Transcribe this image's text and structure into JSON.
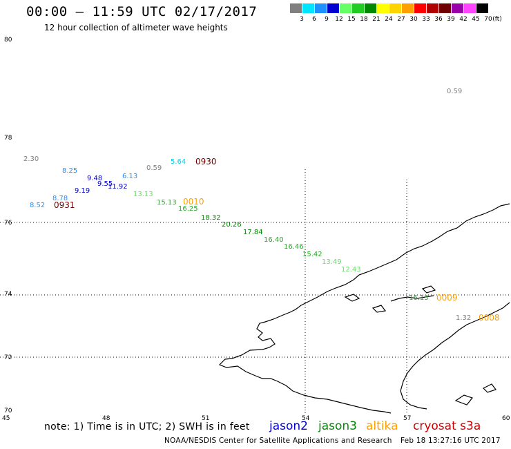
{
  "header": {
    "title": "00:00 – 11:59 UTC 02/17/2017",
    "subtitle": "12 hour collection of altimeter wave heights"
  },
  "color_scale": {
    "unit": "(ft)",
    "bins": [
      {
        "label": "3",
        "color": "#808080"
      },
      {
        "label": "6",
        "color": "#00e5ff"
      },
      {
        "label": "9",
        "color": "#1e90ff"
      },
      {
        "label": "12",
        "color": "#0000d0"
      },
      {
        "label": "15",
        "color": "#66ff66"
      },
      {
        "label": "18",
        "color": "#22cc22"
      },
      {
        "label": "21",
        "color": "#008800"
      },
      {
        "label": "24",
        "color": "#ffff00"
      },
      {
        "label": "27",
        "color": "#ffd400"
      },
      {
        "label": "30",
        "color": "#ffa000"
      },
      {
        "label": "33",
        "color": "#ff0000"
      },
      {
        "label": "36",
        "color": "#b00000"
      },
      {
        "label": "39",
        "color": "#700000"
      },
      {
        "label": "42",
        "color": "#9900aa"
      },
      {
        "label": "45",
        "color": "#ff44ff"
      },
      {
        "label": "70",
        "color": "#000000"
      }
    ]
  },
  "map": {
    "lat_labels": [
      "80",
      "78",
      "76",
      "74",
      "72",
      "70"
    ],
    "lon_labels": [
      "45",
      "48",
      "51",
      "54",
      "57",
      "60"
    ]
  },
  "observations": [
    {
      "value": "0.59",
      "color": "#808080"
    },
    {
      "value": "2.30",
      "color": "#808080"
    },
    {
      "value": "8.25",
      "color": "#1e90ff"
    },
    {
      "value": "5.64",
      "color": "#00cfe8"
    },
    {
      "value": "0930",
      "color": "#700000"
    },
    {
      "value": "0.59",
      "color": "#808080"
    },
    {
      "value": "9.48",
      "color": "#0000d0"
    },
    {
      "value": "6.13",
      "color": "#1e90ff"
    },
    {
      "value": "9.55",
      "color": "#0000d0"
    },
    {
      "value": "11.92",
      "color": "#0000d0"
    },
    {
      "value": "9.19",
      "color": "#0000d0"
    },
    {
      "value": "13.13",
      "color": "#66dd66"
    },
    {
      "value": "8.78",
      "color": "#1e90ff"
    },
    {
      "value": "15.13",
      "color": "#22aa22"
    },
    {
      "value": "0010",
      "color": "#ffa000"
    },
    {
      "value": "8.52",
      "color": "#1e90ff"
    },
    {
      "value": "0931",
      "color": "#700000"
    },
    {
      "value": "16.25",
      "color": "#22aa22"
    },
    {
      "value": "18.32",
      "color": "#008800"
    },
    {
      "value": "20.26",
      "color": "#008800"
    },
    {
      "value": "17.84",
      "color": "#008800"
    },
    {
      "value": "16.40",
      "color": "#22aa22"
    },
    {
      "value": "16.46",
      "color": "#22aa22"
    },
    {
      "value": "15.42",
      "color": "#22aa22"
    },
    {
      "value": "13.49",
      "color": "#66dd66"
    },
    {
      "value": "12.43",
      "color": "#66dd66"
    },
    {
      "value": "16.13",
      "color": "#22aa22"
    },
    {
      "value": "0009",
      "color": "#ffa000"
    },
    {
      "value": "1.32",
      "color": "#808080"
    },
    {
      "value": "0008",
      "color": "#ffa000"
    }
  ],
  "footer": {
    "note": "note: 1) Time is in UTC; 2) SWH is in feet",
    "satellites": [
      {
        "name": "jason2",
        "color": "#0000d0"
      },
      {
        "name": "jason3",
        "color": "#008800"
      },
      {
        "name": "altika",
        "color": "#ffa000"
      },
      {
        "name": "cryosat s3a",
        "color": "#cc0000"
      }
    ],
    "credit": "NOAA/NESDIS Center for Satellite Applications and Research",
    "generated": "Feb 18 13:27:16 UTC 2017"
  }
}
